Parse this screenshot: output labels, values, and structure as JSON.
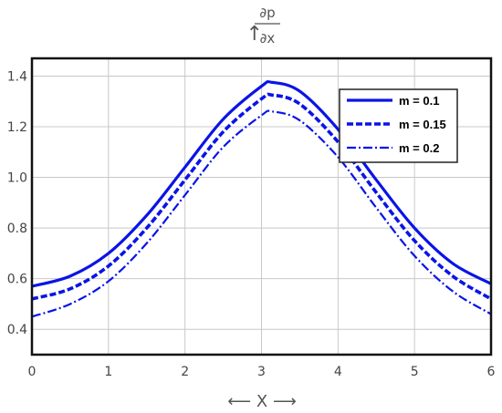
{
  "chart_data": {
    "type": "line",
    "ylabel_numerator": "∂p",
    "ylabel_denominator": "∂x",
    "ylabel_arrow": "↑",
    "xlabel": "X",
    "xlabel_left_arrow": "⟵",
    "xlabel_right_arrow": "⟶",
    "xlim": [
      0,
      6
    ],
    "ylim": [
      0.3,
      1.47
    ],
    "x_ticks": [
      "0",
      "1",
      "2",
      "3",
      "4",
      "5",
      "6"
    ],
    "y_ticks": [
      "0.4",
      "0.6",
      "0.8",
      "1.0",
      "1.2",
      "1.4"
    ],
    "grid": true,
    "legend_position": "top-right",
    "color": "#0a14e6",
    "x": [
      0,
      0.5,
      1,
      1.5,
      2,
      2.5,
      3,
      3.14,
      3.5,
      4,
      4.5,
      5,
      5.5,
      6
    ],
    "series": [
      {
        "name": "m = 0.1",
        "style": "solid",
        "values": [
          0.57,
          0.61,
          0.7,
          0.85,
          1.04,
          1.23,
          1.36,
          1.375,
          1.34,
          1.19,
          0.99,
          0.8,
          0.66,
          0.58
        ]
      },
      {
        "name": "m = 0.15",
        "style": "dashed",
        "values": [
          0.52,
          0.56,
          0.65,
          0.8,
          0.99,
          1.18,
          1.31,
          1.325,
          1.29,
          1.14,
          0.94,
          0.75,
          0.61,
          0.52
        ]
      },
      {
        "name": "m = 0.2",
        "style": "dashdot",
        "values": [
          0.45,
          0.5,
          0.59,
          0.74,
          0.93,
          1.12,
          1.245,
          1.26,
          1.225,
          1.08,
          0.88,
          0.69,
          0.55,
          0.46
        ]
      }
    ]
  }
}
